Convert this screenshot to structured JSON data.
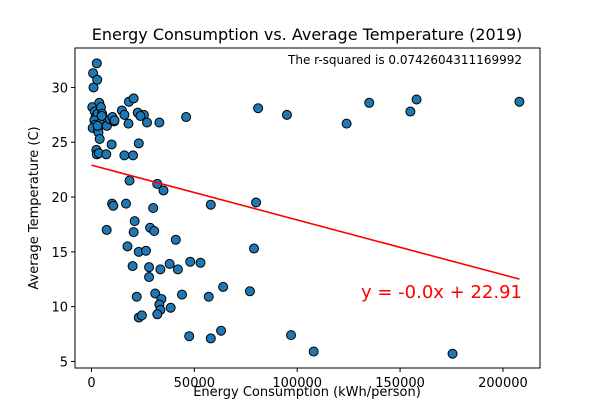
{
  "chart_data": {
    "type": "scatter",
    "title": "Energy Consumption vs. Average Temperature (2019)",
    "xlabel": "Energy Consumption (kWh/person)",
    "ylabel": "Average Temperature (C)",
    "xlim": [
      -8000,
      218000
    ],
    "ylim": [
      4.4,
      33.6
    ],
    "xticks": [
      0,
      50000,
      100000,
      150000,
      200000
    ],
    "yticks": [
      5,
      10,
      15,
      20,
      25,
      30
    ],
    "grid": false,
    "point_color": "#1f77b4",
    "point_edge_color": "#000000",
    "regression": {
      "slope": -5e-05,
      "intercept": 22.91,
      "x_range": [
        0,
        208000
      ],
      "color": "#ff0000",
      "equation_label": "y = -0.0x + 22.91",
      "equation_color": "#ff0000"
    },
    "annotation": "The r-squared is 0.0742604311169992",
    "points": [
      {
        "x": 800,
        "y": 31.3
      },
      {
        "x": 2600,
        "y": 32.2
      },
      {
        "x": 1000,
        "y": 30.0
      },
      {
        "x": 2800,
        "y": 30.7
      },
      {
        "x": 400,
        "y": 28.2
      },
      {
        "x": 1600,
        "y": 27.8
      },
      {
        "x": 2000,
        "y": 27.3
      },
      {
        "x": 3000,
        "y": 27.6
      },
      {
        "x": 1400,
        "y": 27.0
      },
      {
        "x": 1800,
        "y": 26.6
      },
      {
        "x": 600,
        "y": 26.3
      },
      {
        "x": 3200,
        "y": 26.1
      },
      {
        "x": 3800,
        "y": 28.6
      },
      {
        "x": 4600,
        "y": 28.2
      },
      {
        "x": 5200,
        "y": 27.6
      },
      {
        "x": 6000,
        "y": 27.1
      },
      {
        "x": 4200,
        "y": 26.7
      },
      {
        "x": 3400,
        "y": 25.9
      },
      {
        "x": 4000,
        "y": 25.3
      },
      {
        "x": 2400,
        "y": 24.3
      },
      {
        "x": 2600,
        "y": 23.9
      },
      {
        "x": 3600,
        "y": 24.0
      },
      {
        "x": 7500,
        "y": 26.5
      },
      {
        "x": 9000,
        "y": 27.1
      },
      {
        "x": 10200,
        "y": 27.3
      },
      {
        "x": 11000,
        "y": 26.9
      },
      {
        "x": 7200,
        "y": 23.9
      },
      {
        "x": 9800,
        "y": 24.8
      },
      {
        "x": 14800,
        "y": 27.9
      },
      {
        "x": 16000,
        "y": 27.5
      },
      {
        "x": 18200,
        "y": 28.7
      },
      {
        "x": 20500,
        "y": 29.0
      },
      {
        "x": 22500,
        "y": 27.7
      },
      {
        "x": 25500,
        "y": 27.5
      },
      {
        "x": 27000,
        "y": 26.8
      },
      {
        "x": 33000,
        "y": 26.8
      },
      {
        "x": 18000,
        "y": 26.7
      },
      {
        "x": 23000,
        "y": 24.9
      },
      {
        "x": 16000,
        "y": 23.8
      },
      {
        "x": 20200,
        "y": 23.8
      },
      {
        "x": 18500,
        "y": 21.5
      },
      {
        "x": 32000,
        "y": 21.2
      },
      {
        "x": 35000,
        "y": 20.6
      },
      {
        "x": 10000,
        "y": 19.4
      },
      {
        "x": 10600,
        "y": 19.2
      },
      {
        "x": 16800,
        "y": 19.4
      },
      {
        "x": 30000,
        "y": 19.0
      },
      {
        "x": 21000,
        "y": 17.8
      },
      {
        "x": 7400,
        "y": 17.0
      },
      {
        "x": 20500,
        "y": 16.8
      },
      {
        "x": 28500,
        "y": 17.2
      },
      {
        "x": 30500,
        "y": 16.9
      },
      {
        "x": 41000,
        "y": 16.1
      },
      {
        "x": 17500,
        "y": 15.5
      },
      {
        "x": 23000,
        "y": 15.0
      },
      {
        "x": 26500,
        "y": 15.1
      },
      {
        "x": 20000,
        "y": 13.7
      },
      {
        "x": 28000,
        "y": 13.6
      },
      {
        "x": 33500,
        "y": 13.4
      },
      {
        "x": 38000,
        "y": 13.9
      },
      {
        "x": 42000,
        "y": 13.4
      },
      {
        "x": 48000,
        "y": 14.1
      },
      {
        "x": 53000,
        "y": 14.0
      },
      {
        "x": 28000,
        "y": 12.7
      },
      {
        "x": 31000,
        "y": 11.2
      },
      {
        "x": 34000,
        "y": 10.7
      },
      {
        "x": 22000,
        "y": 10.9
      },
      {
        "x": 44000,
        "y": 11.1
      },
      {
        "x": 57000,
        "y": 10.9
      },
      {
        "x": 64000,
        "y": 11.8
      },
      {
        "x": 33000,
        "y": 10.2
      },
      {
        "x": 33500,
        "y": 9.7
      },
      {
        "x": 38500,
        "y": 9.9
      },
      {
        "x": 32000,
        "y": 9.3
      },
      {
        "x": 23000,
        "y": 9.0
      },
      {
        "x": 24500,
        "y": 9.2
      },
      {
        "x": 47500,
        "y": 7.3
      },
      {
        "x": 58000,
        "y": 7.1
      },
      {
        "x": 63000,
        "y": 7.8
      },
      {
        "x": 58000,
        "y": 19.3
      },
      {
        "x": 77000,
        "y": 11.4
      },
      {
        "x": 79000,
        "y": 15.3
      },
      {
        "x": 80000,
        "y": 19.5
      },
      {
        "x": 81000,
        "y": 28.1
      },
      {
        "x": 95000,
        "y": 27.5
      },
      {
        "x": 97000,
        "y": 7.4
      },
      {
        "x": 108000,
        "y": 5.9
      },
      {
        "x": 124000,
        "y": 26.7
      },
      {
        "x": 135000,
        "y": 28.6
      },
      {
        "x": 155000,
        "y": 27.8
      },
      {
        "x": 158000,
        "y": 28.9
      },
      {
        "x": 175500,
        "y": 5.7
      },
      {
        "x": 208000,
        "y": 28.7
      },
      {
        "x": 46000,
        "y": 27.3
      },
      {
        "x": 11200,
        "y": 27.0
      },
      {
        "x": 5000,
        "y": 27.4
      },
      {
        "x": 3000,
        "y": 26.5
      },
      {
        "x": 23800,
        "y": 27.4
      }
    ]
  }
}
